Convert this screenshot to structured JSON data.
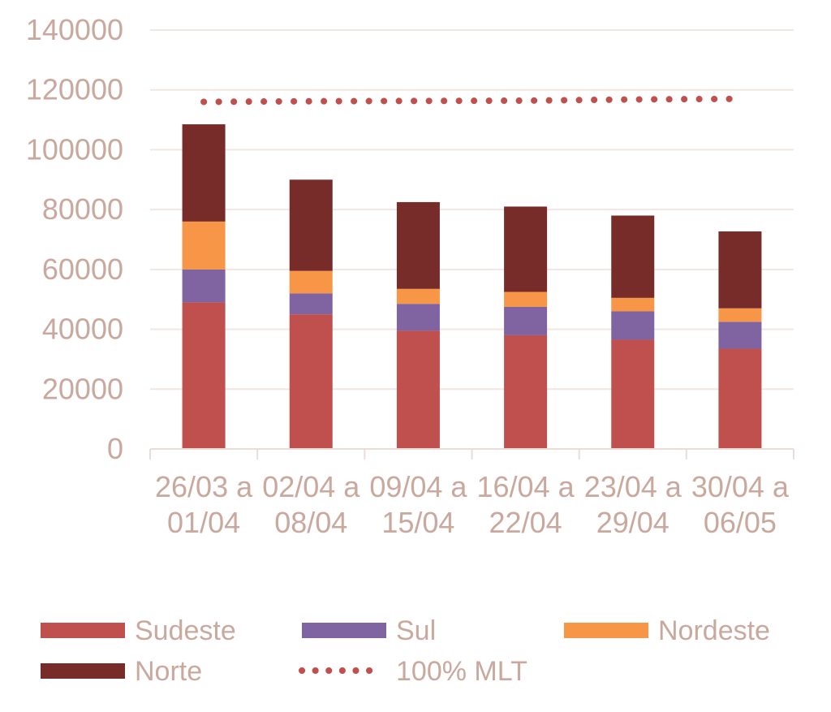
{
  "colors": {
    "text": "#c9a89d",
    "grid": "#f2e6e2",
    "axis": "#eadcd7",
    "sudeste": "#c0504d",
    "sul": "#8064a2",
    "nordeste": "#f79646",
    "norte": "#772c2a",
    "mlt": "#c0504d"
  },
  "chart_data": {
    "type": "bar",
    "stacked": true,
    "categories": [
      [
        "26/03 a",
        "01/04"
      ],
      [
        "02/04 a",
        "08/04"
      ],
      [
        "09/04 a",
        "15/04"
      ],
      [
        "16/04 a",
        "22/04"
      ],
      [
        "23/04 a",
        "29/04"
      ],
      [
        "30/04 a",
        "06/05"
      ]
    ],
    "series": [
      {
        "name": "Sudeste",
        "color_key": "sudeste",
        "values": [
          49000,
          45000,
          39500,
          38000,
          36500,
          33500
        ]
      },
      {
        "name": "Sul",
        "color_key": "sul",
        "values": [
          11000,
          7000,
          9000,
          9500,
          9500,
          9000
        ]
      },
      {
        "name": "Nordeste",
        "color_key": "nordeste",
        "values": [
          16000,
          7500,
          5000,
          5000,
          4500,
          4500
        ]
      },
      {
        "name": "Norte",
        "color_key": "norte",
        "values": [
          32500,
          30500,
          29000,
          28500,
          27500,
          25700
        ]
      }
    ],
    "line_series": {
      "name": "100% MLT",
      "color_key": "mlt",
      "style": "dotted",
      "values": [
        116000,
        116200,
        116300,
        116400,
        116800,
        117000
      ]
    },
    "ylim": [
      0,
      140000
    ],
    "yticks": [
      "0",
      "20000",
      "40000",
      "60000",
      "80000",
      "100000",
      "120000",
      "140000"
    ],
    "grid": true,
    "legend_position": "bottom",
    "legend_rows": [
      [
        "Sudeste",
        "Sul",
        "Nordeste"
      ],
      [
        "Norte",
        "100% MLT"
      ]
    ]
  }
}
